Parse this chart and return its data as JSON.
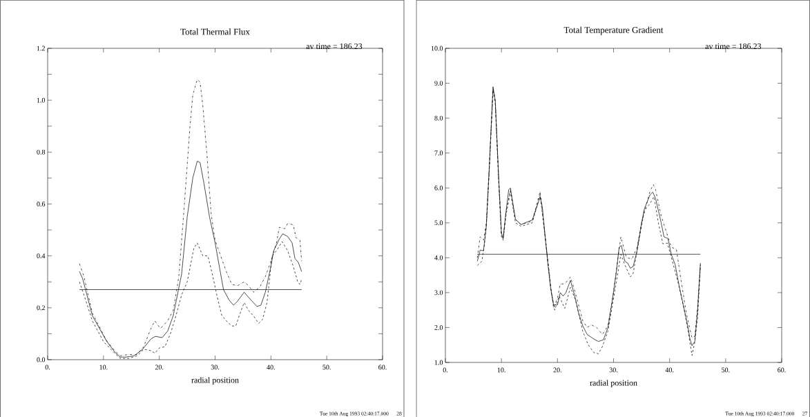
{
  "chart_data": [
    {
      "type": "line",
      "title": "Total Thermal Flux",
      "xlabel": "radial position",
      "annotations": [
        "av time =  186.23",
        "Tue 10th Aug 1993 02:40:17.000",
        "28"
      ],
      "xlim": [
        0,
        60
      ],
      "xticks": [
        {
          "value": 0,
          "label": "0."
        },
        {
          "value": 10,
          "label": "10."
        },
        {
          "value": 20,
          "label": "20."
        },
        {
          "value": 30,
          "label": "30."
        },
        {
          "value": 40,
          "label": "40."
        },
        {
          "value": 50,
          "label": "50."
        },
        {
          "value": 60,
          "label": "60."
        }
      ],
      "ylim": [
        0,
        1.2
      ],
      "yticks": [
        {
          "value": 0,
          "label": "0.0"
        },
        {
          "value": 0.1,
          "label": null
        },
        {
          "value": 0.2,
          "label": "0.2"
        },
        {
          "value": 0.3,
          "label": null
        },
        {
          "value": 0.4,
          "label": "0.4"
        },
        {
          "value": 0.5,
          "label": null
        },
        {
          "value": 0.6,
          "label": "0.6"
        },
        {
          "value": 0.7,
          "label": null
        },
        {
          "value": 0.8,
          "label": "0.8"
        },
        {
          "value": 0.9,
          "label": null
        },
        {
          "value": 1.0,
          "label": "1.0"
        },
        {
          "value": 1.1,
          "label": null
        },
        {
          "value": 1.2,
          "label": "1.2"
        }
      ],
      "ref_lines": [
        {
          "axis": "y",
          "value": 0.27,
          "color": "#000000",
          "line_style": "solid"
        }
      ],
      "series": [
        {
          "color": "#000000",
          "line_style": "solid",
          "x": [
            5.7,
            6.3,
            8,
            10.6,
            12,
            13,
            14,
            15.5,
            17,
            18.5,
            19.3,
            20.5,
            21.5,
            22.5,
            24,
            25,
            26,
            26.8,
            27.3,
            28,
            29,
            30,
            31,
            31.5,
            32.5,
            33.3,
            34,
            35.2,
            36,
            37.5,
            38.2,
            39,
            40,
            40.5,
            41.5,
            42.1,
            43,
            43.8,
            44.3,
            44.9,
            45.5
          ],
          "values": [
            0.34,
            0.31,
            0.17,
            0.07,
            0.03,
            0.01,
            0.01,
            0.015,
            0.04,
            0.08,
            0.09,
            0.085,
            0.11,
            0.17,
            0.33,
            0.55,
            0.7,
            0.765,
            0.76,
            0.68,
            0.55,
            0.45,
            0.33,
            0.27,
            0.23,
            0.21,
            0.225,
            0.26,
            0.24,
            0.205,
            0.21,
            0.26,
            0.36,
            0.42,
            0.465,
            0.485,
            0.475,
            0.45,
            0.39,
            0.375,
            0.34
          ]
        },
        {
          "color": "#000000",
          "line_style": "dashdot",
          "x": [
            5.7,
            6.5,
            8,
            10.5,
            12,
            13,
            14.5,
            16,
            17.2,
            18.5,
            19.2,
            20.2,
            21.5,
            22.5,
            23.5,
            24.5,
            25.5,
            26,
            26.8,
            27.3,
            27.8,
            28.5,
            29.3,
            30,
            31,
            32,
            33,
            34,
            35.2,
            36,
            36.9,
            38,
            39,
            40,
            41,
            41.5,
            42.5,
            43,
            44,
            44.5,
            45.2,
            45.5
          ],
          "values": [
            0.37,
            0.32,
            0.18,
            0.075,
            0.035,
            0.015,
            0.02,
            0.02,
            0.05,
            0.12,
            0.15,
            0.12,
            0.15,
            0.19,
            0.32,
            0.6,
            0.9,
            1.02,
            1.08,
            1.07,
            0.98,
            0.8,
            0.56,
            0.46,
            0.4,
            0.34,
            0.29,
            0.285,
            0.3,
            0.285,
            0.26,
            0.28,
            0.32,
            0.38,
            0.45,
            0.51,
            0.505,
            0.525,
            0.52,
            0.47,
            0.46,
            0.38
          ]
        },
        {
          "color": "#000000",
          "line_style": "dashed",
          "x": [
            5.7,
            6.5,
            8,
            10,
            12,
            13,
            14.5,
            16,
            17.2,
            18.5,
            19.2,
            20,
            21,
            22,
            23,
            24,
            25,
            26.2,
            26.8,
            27.8,
            28.7,
            29.5,
            30.3,
            31.2,
            32,
            33,
            33.7,
            34.5,
            35.2,
            36,
            37,
            37.8,
            38.5,
            39.3,
            40.2,
            41,
            42,
            43,
            44,
            44.8,
            45.2,
            45.5
          ],
          "values": [
            0.3,
            0.25,
            0.15,
            0.07,
            0.025,
            0.005,
            0.005,
            0.015,
            0.04,
            0.035,
            0.025,
            0.045,
            0.05,
            0.1,
            0.17,
            0.25,
            0.3,
            0.43,
            0.45,
            0.4,
            0.4,
            0.33,
            0.25,
            0.17,
            0.15,
            0.13,
            0.13,
            0.18,
            0.22,
            0.19,
            0.165,
            0.14,
            0.155,
            0.22,
            0.4,
            0.42,
            0.455,
            0.42,
            0.36,
            0.3,
            0.29,
            0.31
          ]
        }
      ]
    },
    {
      "type": "line",
      "title": "Total Temperature Gradient",
      "xlabel": "radial position",
      "annotations": [
        "av time =  186.23",
        "Tue 10th Aug 1993 02:40:17.000",
        "27"
      ],
      "xlim": [
        0,
        60
      ],
      "xticks": [
        {
          "value": 0,
          "label": "0."
        },
        {
          "value": 10,
          "label": "10."
        },
        {
          "value": 20,
          "label": "20."
        },
        {
          "value": 30,
          "label": "30."
        },
        {
          "value": 40,
          "label": "40."
        },
        {
          "value": 50,
          "label": "50."
        },
        {
          "value": 60,
          "label": "60."
        }
      ],
      "ylim": [
        1,
        10
      ],
      "yticks": [
        {
          "value": 1,
          "label": "1.0"
        },
        {
          "value": 2,
          "label": "2.0"
        },
        {
          "value": 3,
          "label": "3.0"
        },
        {
          "value": 4,
          "label": "4.0"
        },
        {
          "value": 5,
          "label": "5.0"
        },
        {
          "value": 6,
          "label": "6.0"
        },
        {
          "value": 7,
          "label": "7.0"
        },
        {
          "value": 8,
          "label": "8.0"
        },
        {
          "value": 9,
          "label": "9.0"
        },
        {
          "value": 10,
          "label": "10.0"
        }
      ],
      "ref_lines": [
        {
          "axis": "y",
          "value": 4.1,
          "color": "#000000",
          "line_style": "solid"
        }
      ],
      "series": [
        {
          "color": "#000000",
          "line_style": "solid",
          "x": [
            5.7,
            6.2,
            6.8,
            7.3,
            7.8,
            8.5,
            8.9,
            9.5,
            10,
            10.3,
            10.8,
            11.3,
            11.6,
            12,
            12.5,
            13.5,
            14.5,
            15.5,
            16.5,
            16.9,
            17.3,
            17.8,
            18.3,
            18.8,
            19.3,
            20,
            20.5,
            21,
            21.5,
            22.3,
            23,
            23.8,
            24.5,
            25.3,
            26.5,
            27.3,
            28.2,
            29,
            29.8,
            30.5,
            31,
            31.4,
            32,
            32.5,
            33,
            33.5,
            34.2,
            35,
            35.5,
            36.5,
            37,
            37.5,
            38.5,
            39,
            39.7,
            40.3,
            41,
            41.7,
            42.5,
            43.3,
            43.6,
            44,
            44.5,
            45,
            45.5
          ],
          "values": [
            3.9,
            4.22,
            4.2,
            4.9,
            6.5,
            8.9,
            8.5,
            6.3,
            4.7,
            4.55,
            5.3,
            5.95,
            6.0,
            5.6,
            5.1,
            4.95,
            5.02,
            5.08,
            5.55,
            5.75,
            5.45,
            4.6,
            3.8,
            3.1,
            2.65,
            2.65,
            3.0,
            2.9,
            3.0,
            3.35,
            2.95,
            2.4,
            2.05,
            1.8,
            1.67,
            1.6,
            1.65,
            2.0,
            2.8,
            3.6,
            4.3,
            4.35,
            3.9,
            3.85,
            3.7,
            3.75,
            4.2,
            5.0,
            5.4,
            5.8,
            5.88,
            5.7,
            5.0,
            4.6,
            4.55,
            4.1,
            3.8,
            3.2,
            2.6,
            2.0,
            1.7,
            1.48,
            1.6,
            2.5,
            3.85
          ]
        },
        {
          "color": "#000000",
          "line_style": "dashdot",
          "x": [
            5.7,
            6.2,
            6.8,
            7.3,
            7.8,
            8.5,
            8.9,
            9.5,
            10,
            10.3,
            10.8,
            11.6,
            12.5,
            13.5,
            15.5,
            16.9,
            17.8,
            18.8,
            19.3,
            20,
            20.5,
            21.3,
            22.3,
            23,
            24.5,
            25.3,
            26,
            27,
            28,
            29,
            30,
            30.8,
            31.3,
            32.3,
            33.3,
            34.2,
            35,
            36.5,
            37.1,
            37.5,
            38.5,
            39.5,
            40.3,
            41.2,
            42,
            43,
            44,
            44.5,
            45,
            45.5
          ],
          "values": [
            4.0,
            4.6,
            4.5,
            5.0,
            6.5,
            8.85,
            8.5,
            6.3,
            4.7,
            4.55,
            5.3,
            5.95,
            5.1,
            4.95,
            5.05,
            5.9,
            4.6,
            3.2,
            2.55,
            2.85,
            3.25,
            3.25,
            3.45,
            3.1,
            2.2,
            2.0,
            2.08,
            2.0,
            1.8,
            2.05,
            3.0,
            4.0,
            4.6,
            4.0,
            3.97,
            4.3,
            5.0,
            5.9,
            6.1,
            5.95,
            5.2,
            4.7,
            4.3,
            4.25,
            3.4,
            2.4,
            1.7,
            1.75,
            2.6,
            3.8
          ]
        },
        {
          "color": "#000000",
          "line_style": "dashed",
          "x": [
            5.7,
            6.5,
            6.9,
            7.3,
            7.8,
            8.5,
            8.9,
            9.5,
            10,
            10.3,
            10.8,
            11.6,
            12.5,
            13.5,
            15.5,
            16.9,
            17.8,
            18.8,
            19.5,
            20.3,
            21.3,
            22.3,
            23.2,
            24.5,
            25.5,
            26.5,
            27.3,
            28,
            29,
            30.5,
            31.3,
            32,
            33,
            33.5,
            34.3,
            35.5,
            36.5,
            37.2,
            38,
            38.8,
            39.6,
            40.5,
            41.5,
            42.5,
            43.3,
            44,
            44.5,
            45,
            45.5
          ],
          "values": [
            3.78,
            3.9,
            4.3,
            4.9,
            6.4,
            8.8,
            8.4,
            6.2,
            4.6,
            4.5,
            5.2,
            5.9,
            5.0,
            4.9,
            5.0,
            5.8,
            4.6,
            3.1,
            2.5,
            2.9,
            2.55,
            3.15,
            2.8,
            1.9,
            1.5,
            1.28,
            1.25,
            1.45,
            1.9,
            3.3,
            4.1,
            3.8,
            3.45,
            3.55,
            4.3,
            5.35,
            5.55,
            5.75,
            5.0,
            4.4,
            4.42,
            3.9,
            3.3,
            2.6,
            1.9,
            1.2,
            1.6,
            2.3,
            3.75
          ]
        }
      ]
    }
  ]
}
